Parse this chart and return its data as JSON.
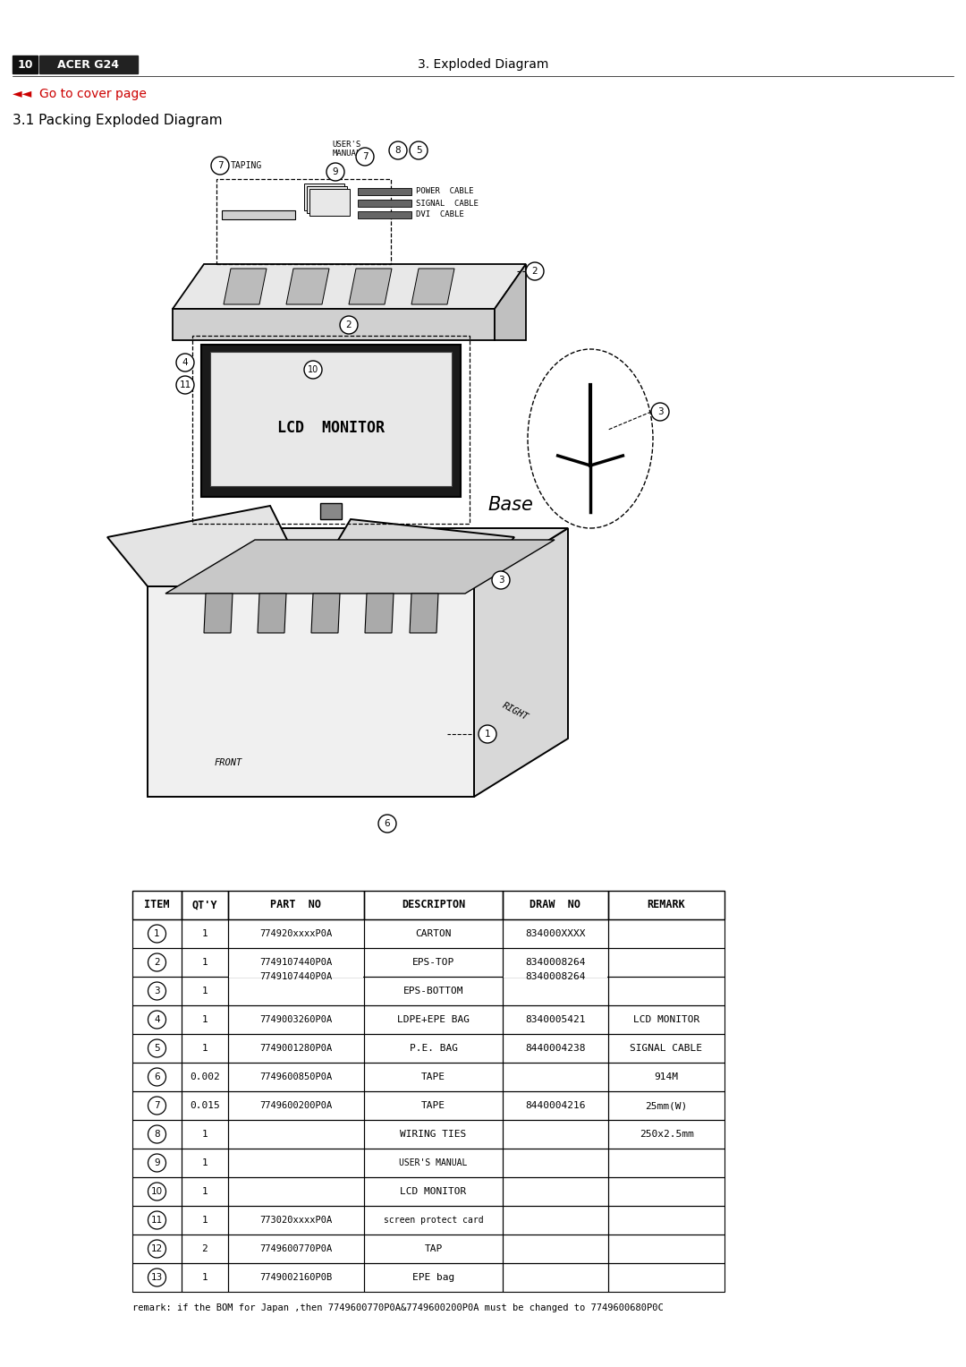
{
  "page_number": "10",
  "page_title": "ACER G24",
  "section_title": "3. Exploded Diagram",
  "nav_text": "◄◄  Go to cover page",
  "section_heading": "3.1 Packing Exploded Diagram",
  "background_color": "#ffffff",
  "header_bg": "#1a1a1a",
  "header_text_color": "#ffffff",
  "nav_color": "#cc0000",
  "table_headers": [
    "ITEM",
    "QT'Y",
    "PART  NO",
    "DESCRIPTON",
    "DRAW  NO",
    "REMARK"
  ],
  "table_rows": [
    [
      "1",
      "1",
      "774920xxxxP0A",
      "CARTON",
      "834000XXXX",
      ""
    ],
    [
      "2",
      "1",
      "7749107440P0A",
      "EPS-TOP",
      "8340008264",
      ""
    ],
    [
      "3",
      "1",
      "",
      "EPS-BOTTOM",
      "",
      ""
    ],
    [
      "4",
      "1",
      "7749003260P0A",
      "LDPE+EPE BAG",
      "8340005421",
      "LCD MONITOR"
    ],
    [
      "5",
      "1",
      "7749001280P0A",
      "P.E. BAG",
      "8440004238",
      "SIGNAL CABLE"
    ],
    [
      "6",
      "0.002",
      "7749600850P0A",
      "TAPE",
      "",
      "914M"
    ],
    [
      "7",
      "0.015",
      "7749600200P0A",
      "TAPE",
      "8440004216",
      "25mm(W)"
    ],
    [
      "8",
      "1",
      "",
      "WIRING TIES",
      "",
      "250x2.5mm"
    ],
    [
      "9",
      "1",
      "",
      "USER'S MANUAL",
      "",
      ""
    ],
    [
      "10",
      "1",
      "",
      "LCD MONITOR",
      "",
      ""
    ],
    [
      "11",
      "1",
      "773020xxxxP0A",
      "screen protect card",
      "",
      ""
    ],
    [
      "12",
      "2",
      "7749600770P0A",
      "TAP",
      "",
      ""
    ],
    [
      "13",
      "1",
      "7749002160P0B",
      "EPE bag",
      "",
      ""
    ]
  ],
  "remark_text": "remark: if the BOM for Japan ,then 7749600770P0A&7749600200P0A must be changed to 7749600680P0C"
}
